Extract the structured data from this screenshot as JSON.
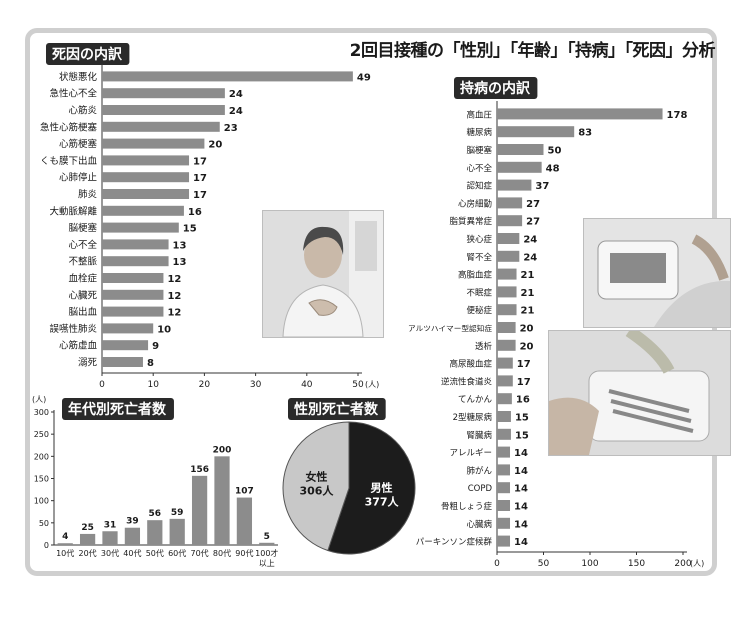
{
  "main_title": "2回目接種の「性別」「年齢」「持病」「死因」分析",
  "colors": {
    "bar": "#8c8c8c",
    "badge_bg": "#2a2a2a",
    "badge_text": "#ffffff",
    "pie_male": "#1c1c1c",
    "pie_female": "#c8c8c8",
    "frame": "#cfcfcf"
  },
  "chart_data": [
    {
      "id": "cause_of_death",
      "type": "bar",
      "orientation": "horizontal",
      "title": "死因の内訳",
      "unit": "(人)",
      "xlim": [
        0,
        50
      ],
      "ticks": [
        0,
        10,
        20,
        30,
        40,
        50
      ],
      "categories": [
        "状態悪化",
        "急性心不全",
        "心筋炎",
        "急性心筋梗塞",
        "心筋梗塞",
        "くも膜下出血",
        "心肺停止",
        "肺炎",
        "大動脈解離",
        "脳梗塞",
        "心不全",
        "不整脈",
        "血栓症",
        "心臓死",
        "脳出血",
        "誤嚥性肺炎",
        "心筋虚血",
        "溺死"
      ],
      "values": [
        49,
        24,
        24,
        23,
        20,
        17,
        17,
        17,
        16,
        15,
        13,
        13,
        12,
        12,
        12,
        10,
        9,
        8
      ]
    },
    {
      "id": "pre_existing",
      "type": "bar",
      "orientation": "horizontal",
      "title": "持病の内訳",
      "unit": "(人)",
      "xlim": [
        0,
        200
      ],
      "ticks": [
        0,
        50,
        100,
        150,
        200
      ],
      "categories": [
        "高血圧",
        "糖尿病",
        "脳梗塞",
        "心不全",
        "認知症",
        "心房細動",
        "脂質異常症",
        "狭心症",
        "腎不全",
        "高脂血症",
        "不眠症",
        "便秘症",
        "アルツハイマー型認知症",
        "透析",
        "高尿酸血症",
        "逆流性食道炎",
        "てんかん",
        "2型糖尿病",
        "腎臓病",
        "アレルギー",
        "肺がん",
        "COPD",
        "骨粗しょう症",
        "心臓病",
        "パーキンソン症候群"
      ],
      "values": [
        178,
        83,
        50,
        48,
        37,
        27,
        27,
        24,
        24,
        21,
        21,
        21,
        20,
        20,
        17,
        17,
        16,
        15,
        15,
        14,
        14,
        14,
        14,
        14,
        14
      ]
    },
    {
      "id": "age_groups",
      "type": "bar",
      "orientation": "vertical",
      "title": "年代別死亡者数",
      "unit": "(人)",
      "ylim": [
        0,
        300
      ],
      "ticks": [
        0,
        50,
        100,
        150,
        200,
        250,
        300
      ],
      "categories": [
        "10代",
        "20代",
        "30代",
        "40代",
        "50代",
        "60代",
        "70代",
        "80代",
        "90代",
        "100才以上"
      ],
      "category_lines": [
        [
          "10代"
        ],
        [
          "20代"
        ],
        [
          "30代"
        ],
        [
          "40代"
        ],
        [
          "50代"
        ],
        [
          "60代"
        ],
        [
          "70代"
        ],
        [
          "80代"
        ],
        [
          "90代"
        ],
        [
          "100才",
          "以上"
        ]
      ],
      "values": [
        4,
        25,
        31,
        39,
        56,
        59,
        156,
        200,
        107,
        5
      ]
    },
    {
      "id": "gender",
      "type": "pie",
      "title": "性別死亡者数",
      "slices": [
        {
          "label": "男性",
          "value": 377,
          "value_text": "377人"
        },
        {
          "label": "女性",
          "value": 306,
          "value_text": "306人"
        }
      ]
    }
  ]
}
